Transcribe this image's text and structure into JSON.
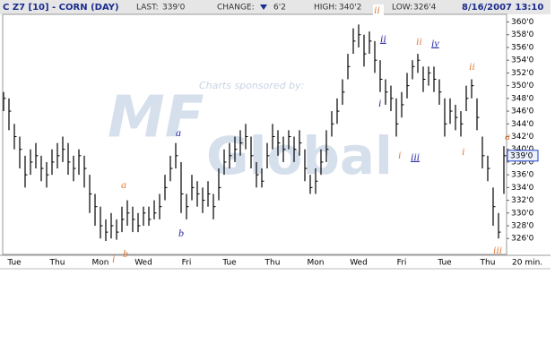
{
  "chart_data": {
    "type": "ohlc",
    "header": {
      "symbol": "C Z7 [10] - CORN (DAY)",
      "last_label": "LAST:",
      "last": "339'0",
      "change_label": "CHANGE:",
      "change": "6'2",
      "high_label": "HIGH:",
      "high": "340'2",
      "low_label": "LOW:",
      "low": "326'4",
      "datetime": "8/16/2007 13:10"
    },
    "watermark": {
      "sponsor": "Charts sponsored by:",
      "brand": "MF",
      "brand2": "Global"
    },
    "interval": "20 min.",
    "color": "#000000",
    "categories": [
      null,
      null,
      "Tue",
      null,
      null,
      null,
      null,
      null,
      null,
      null,
      "Thu",
      null,
      null,
      null,
      null,
      null,
      null,
      null,
      "Mon",
      null,
      null,
      null,
      null,
      null,
      null,
      null,
      "Wed",
      null,
      null,
      null,
      null,
      null,
      null,
      null,
      "Fri",
      null,
      null,
      null,
      null,
      null,
      null,
      null,
      "Tue",
      null,
      null,
      null,
      null,
      null,
      null,
      null,
      "Thu",
      null,
      null,
      null,
      null,
      null,
      null,
      null,
      "Mon",
      null,
      null,
      null,
      null,
      null,
      null,
      null,
      "Wed",
      null,
      null,
      null,
      null,
      null,
      null,
      null,
      "Fri",
      null,
      null,
      null,
      null,
      null,
      null,
      null,
      "Tue",
      null,
      null,
      null,
      null,
      null,
      null,
      null,
      "Thu",
      null,
      null,
      null
    ],
    "high": [
      349,
      348,
      344,
      342,
      339,
      340,
      341,
      339,
      338,
      340,
      341,
      342,
      341,
      339,
      340,
      339,
      336,
      333,
      331,
      329,
      330,
      329,
      331,
      332,
      331,
      330,
      331,
      331,
      332,
      333,
      336,
      339,
      341,
      338,
      333,
      336,
      335,
      334,
      335,
      333,
      337,
      340,
      341,
      342,
      343,
      344,
      342,
      338,
      337,
      341,
      344,
      343,
      342,
      343,
      342,
      343,
      340,
      336,
      337,
      340,
      343,
      346,
      348,
      351,
      355,
      359,
      359.6,
      358,
      358.5,
      357,
      354,
      351,
      350,
      348,
      349,
      352,
      354,
      355,
      353,
      353,
      353,
      351,
      348,
      348,
      347,
      346,
      350,
      351,
      348,
      342,
      339,
      334,
      330,
      340.5
    ],
    "low": [
      346,
      343,
      340,
      337,
      334,
      336,
      337,
      335,
      334,
      336,
      337,
      338,
      336,
      335,
      336,
      334,
      330,
      328,
      326,
      325.6,
      326,
      325.8,
      327,
      328,
      327,
      327,
      328,
      328,
      329,
      329,
      332,
      335,
      337,
      330,
      329,
      332,
      331,
      330,
      331,
      329,
      332,
      336,
      337,
      338,
      339,
      340,
      337,
      334,
      334,
      337,
      340,
      339,
      338,
      340,
      338,
      339,
      335,
      333,
      333,
      336,
      338,
      342,
      344,
      347,
      351,
      355,
      356,
      353,
      355,
      352,
      349,
      347,
      346,
      342,
      345,
      348,
      351,
      352,
      349,
      350,
      349,
      347,
      342,
      344,
      343,
      342,
      346,
      348,
      343,
      337,
      335,
      328,
      326,
      333
    ],
    "close": [
      348,
      346,
      342,
      340,
      336,
      338,
      339,
      337,
      336,
      338,
      339,
      340,
      338,
      337,
      339,
      337,
      333,
      331,
      328,
      327,
      328,
      327,
      329,
      330,
      329,
      328,
      330,
      329,
      330,
      331,
      334,
      337,
      339,
      333,
      331,
      334,
      333,
      332,
      333,
      331,
      334,
      338,
      339,
      340,
      341,
      342,
      339,
      336,
      335,
      339,
      342,
      341,
      340,
      342,
      340,
      341,
      337,
      334,
      335,
      338,
      340,
      344,
      346,
      349,
      353,
      357,
      358,
      355,
      357,
      354,
      351,
      349,
      348,
      344,
      347,
      350,
      353,
      354,
      351,
      352,
      351,
      349,
      344,
      346,
      345,
      344,
      348,
      350,
      345,
      339,
      337,
      331,
      327,
      339
    ],
    "ylim": [
      323.5,
      361.2
    ],
    "yticks": [
      {
        "value": 326,
        "label": "326'0"
      },
      {
        "value": 328,
        "label": "328'0"
      },
      {
        "value": 330,
        "label": "330'0"
      },
      {
        "value": 332,
        "label": "332'0"
      },
      {
        "value": 334,
        "label": "334'0"
      },
      {
        "value": 336,
        "label": "336'0"
      },
      {
        "value": 338,
        "label": "338'0"
      },
      {
        "value": 340,
        "label": "340'0"
      },
      {
        "value": 342,
        "label": "342'0"
      },
      {
        "value": 344,
        "label": "344'0"
      },
      {
        "value": 346,
        "label": "346'0"
      },
      {
        "value": 348,
        "label": "348'0"
      },
      {
        "value": 350,
        "label": "350'0"
      },
      {
        "value": 352,
        "label": "352'0"
      },
      {
        "value": 354,
        "label": "354'0"
      },
      {
        "value": 356,
        "label": "356'0"
      },
      {
        "value": 358,
        "label": "358'0"
      },
      {
        "value": 360,
        "label": "360'0"
      }
    ],
    "annotations": [
      {
        "text": "ii",
        "color": "#e07a3a"
      },
      {
        "text": "ii",
        "color": "#2828a8"
      },
      {
        "text": "ii",
        "color": "#e07a3a"
      },
      {
        "text": "iv",
        "color": "#2828a8"
      },
      {
        "text": "ii",
        "color": "#e07a3a"
      },
      {
        "text": "i",
        "color": "#2828a8"
      },
      {
        "text": "i",
        "color": "#e07a3a"
      },
      {
        "text": "iii",
        "color": "#2828a8"
      },
      {
        "text": "i",
        "color": "#e07a3a"
      },
      {
        "text": "a",
        "color": "#2828a8"
      },
      {
        "text": "a",
        "color": "#e07a3a"
      },
      {
        "text": "b",
        "color": "#2828a8"
      },
      {
        "text": "i",
        "color": "#e07a3a"
      },
      {
        "text": "b",
        "color": "#e07a3a"
      },
      {
        "text": "iii",
        "color": "#e07a3a"
      },
      {
        "text": "a",
        "color": "#e07a3a"
      }
    ]
  }
}
